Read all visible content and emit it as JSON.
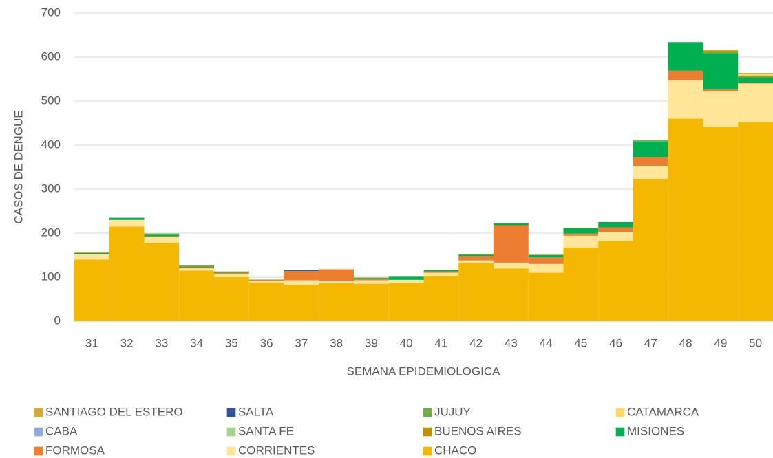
{
  "chart_data": {
    "type": "stacked_bar",
    "y_label": "CASOS DE DENGUE",
    "x_label": "SEMANA EPIDEMIOLOGICA",
    "categories": [
      "31",
      "32",
      "33",
      "34",
      "35",
      "36",
      "37",
      "38",
      "39",
      "40",
      "41",
      "42",
      "43",
      "44",
      "45",
      "46",
      "47",
      "48",
      "49",
      "50"
    ],
    "ylim": [
      0,
      700
    ],
    "yticks": [
      0,
      100,
      200,
      300,
      400,
      500,
      600,
      700
    ],
    "grid": true,
    "series": [
      {
        "name": "CHACO",
        "color": "#f5b800",
        "values": [
          140,
          215,
          178,
          115,
          100,
          88,
          83,
          87,
          85,
          87,
          102,
          133,
          120,
          110,
          167,
          183,
          323,
          460,
          442,
          452
        ]
      },
      {
        "name": "CORRIENTES",
        "color": "#ffe699",
        "values": [
          13,
          15,
          13,
          5,
          7,
          3,
          10,
          5,
          8,
          7,
          8,
          5,
          13,
          20,
          27,
          20,
          30,
          87,
          80,
          88
        ]
      },
      {
        "name": "FORMOSA",
        "color": "#ed7d31",
        "values": [
          0,
          0,
          2,
          2,
          3,
          3,
          20,
          25,
          3,
          0,
          3,
          10,
          85,
          15,
          5,
          10,
          20,
          22,
          5,
          2
        ]
      },
      {
        "name": "MISIONES",
        "color": "#00b050",
        "values": [
          2,
          5,
          5,
          2,
          2,
          0,
          0,
          0,
          2,
          7,
          3,
          3,
          5,
          5,
          12,
          12,
          35,
          65,
          82,
          12
        ]
      },
      {
        "name": "BUENOS AIRES",
        "color": "#bf9000",
        "values": [
          1,
          0,
          1,
          1,
          1,
          0,
          1,
          1,
          1,
          0,
          0,
          1,
          0,
          1,
          1,
          0,
          0,
          0,
          3,
          3
        ]
      },
      {
        "name": "SANTA FE",
        "color": "#a9d18e",
        "values": [
          0,
          0,
          0,
          0,
          0,
          2,
          0,
          0,
          0,
          0,
          0,
          0,
          0,
          0,
          0,
          0,
          0,
          0,
          0,
          2
        ]
      },
      {
        "name": "CABA",
        "color": "#8faadc",
        "values": [
          0,
          0,
          0,
          0,
          0,
          0,
          0,
          0,
          0,
          0,
          0,
          0,
          0,
          0,
          0,
          0,
          0,
          0,
          0,
          0
        ]
      },
      {
        "name": "CATAMARCA",
        "color": "#ffd966",
        "values": [
          0,
          0,
          0,
          0,
          0,
          0,
          0,
          0,
          0,
          0,
          0,
          0,
          0,
          0,
          0,
          0,
          0,
          0,
          0,
          2
        ]
      },
      {
        "name": "JUJUY",
        "color": "#70ad47",
        "values": [
          0,
          0,
          0,
          2,
          0,
          0,
          0,
          0,
          0,
          0,
          0,
          0,
          0,
          0,
          0,
          0,
          3,
          0,
          2,
          0
        ]
      },
      {
        "name": "SALTA",
        "color": "#2f5597",
        "values": [
          0,
          0,
          0,
          0,
          0,
          0,
          3,
          0,
          0,
          0,
          0,
          0,
          0,
          0,
          0,
          0,
          0,
          0,
          0,
          0
        ]
      },
      {
        "name": "SANTIAGO DEL ESTERO",
        "color": "#d4a93a",
        "values": [
          0,
          0,
          0,
          0,
          0,
          0,
          0,
          0,
          0,
          0,
          0,
          0,
          0,
          0,
          0,
          0,
          0,
          0,
          3,
          3
        ]
      }
    ]
  }
}
